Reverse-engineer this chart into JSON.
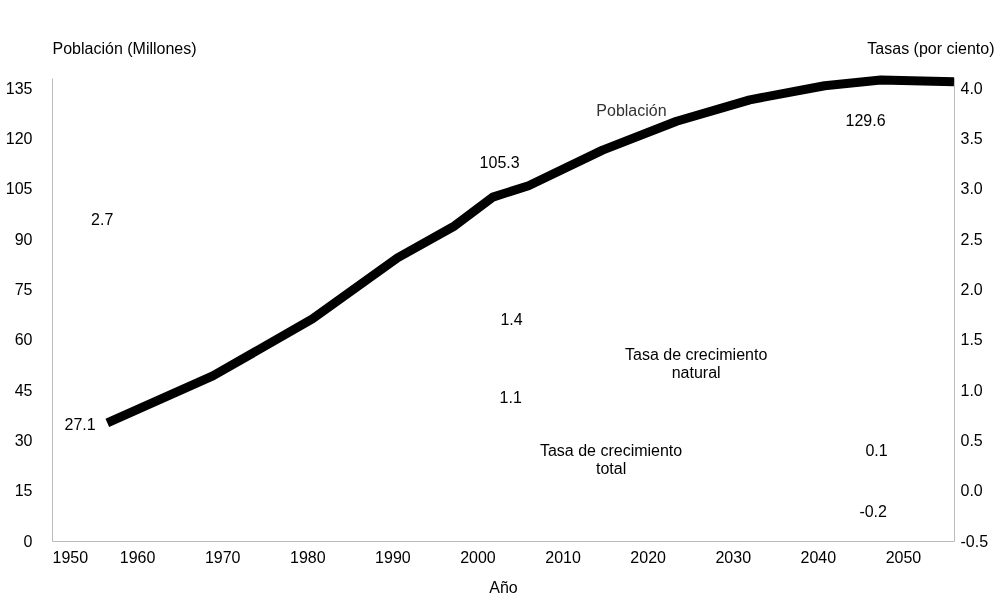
{
  "chart_data": {
    "type": "line",
    "xlabel": "Año",
    "ylabel": "Población (Millones)",
    "y2label": "Tasas (por ciento)",
    "xlim": [
      1950,
      2056
    ],
    "xticks": [
      1950,
      1960,
      1970,
      1980,
      1990,
      2000,
      2010,
      2020,
      2030,
      2040,
      2050
    ],
    "ylim": [
      0,
      138
    ],
    "yticks": [
      0,
      15,
      30,
      45,
      60,
      75,
      90,
      105,
      120,
      135
    ],
    "y2lim": [
      -0.5,
      4.1
    ],
    "y2ticks": [
      {
        "value": -0.5,
        "label": "-0.5"
      },
      {
        "value": 0,
        "label": "0.0"
      },
      {
        "value": 0.5,
        "label": "0.5"
      },
      {
        "value": 1,
        "label": "1.0"
      },
      {
        "value": 1.5,
        "label": "1.5"
      },
      {
        "value": 2,
        "label": "2.0"
      },
      {
        "value": 2.5,
        "label": "2.5"
      },
      {
        "value": 3,
        "label": "3.0"
      },
      {
        "value": 3.5,
        "label": "3.5"
      },
      {
        "value": 4,
        "label": "4.0"
      }
    ],
    "grid": false,
    "marker": "none",
    "line_style": "solid",
    "series": [
      {
        "name": "Población",
        "color": "#000000",
        "x": [
          1956.5,
          1968.9,
          1980.6,
          1990.6,
          1997.3,
          2001.8,
          2006,
          2014.7,
          2023.4,
          2032,
          2040.8,
          2047.4,
          2056
        ],
        "values": [
          35.2,
          49.2,
          66.2,
          84.4,
          93.9,
          102.5,
          105.9,
          116.5,
          125.1,
          131.5,
          135.7,
          137.4,
          136.9
        ]
      }
    ],
    "annotations": [
      "27.1",
      "2.7",
      "105.3",
      "129.6",
      "1.4",
      "Tasa de crecimiento\nnatural",
      "1.1",
      "Tasa de crecimiento\ntotal",
      "0.1",
      "-0.2"
    ]
  }
}
